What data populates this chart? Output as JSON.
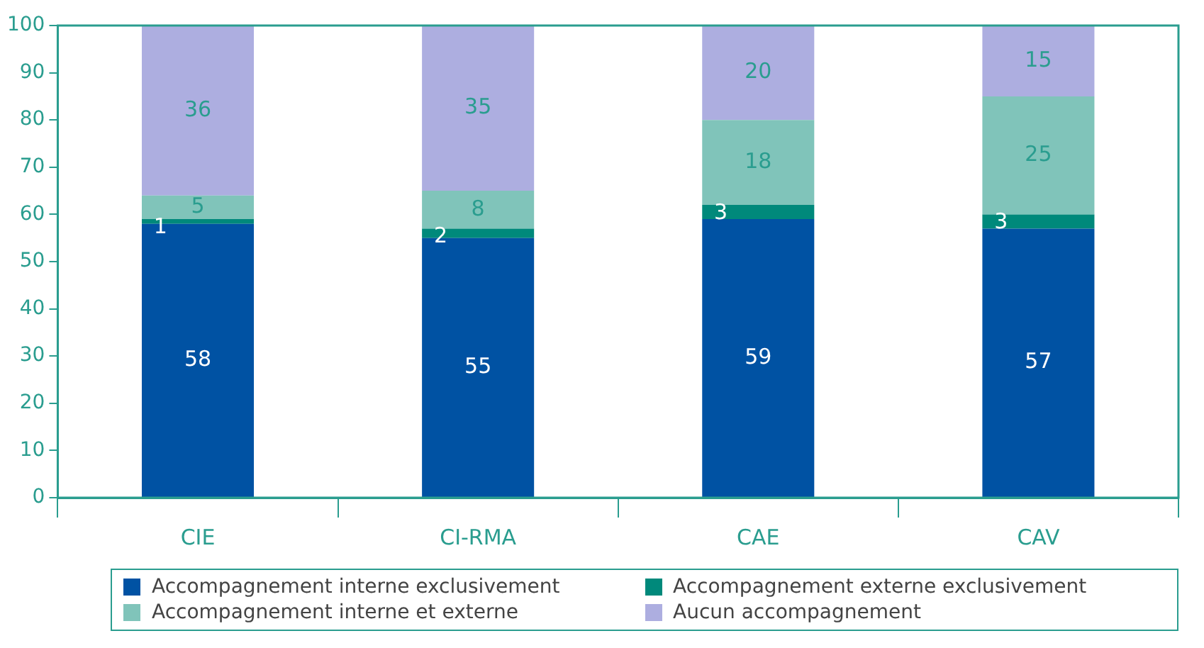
{
  "chart_data": {
    "type": "bar",
    "stacked": true,
    "categories": [
      "CIE",
      "CI-RMA",
      "CAE",
      "CAV"
    ],
    "series": [
      {
        "name": "Accompagnement interne exclusivement",
        "color": "#0052a3",
        "values": [
          58,
          55,
          59,
          57
        ]
      },
      {
        "name": "Accompagnement externe exclusivement",
        "color": "#00897b",
        "values": [
          1,
          2,
          3,
          3
        ]
      },
      {
        "name": "Accompagnement interne et externe",
        "color": "#80c4ba",
        "values": [
          5,
          8,
          18,
          25
        ]
      },
      {
        "name": "Aucun accompagnement",
        "color": "#adaee0",
        "values": [
          36,
          35,
          20,
          15
        ]
      }
    ],
    "ylim": [
      0,
      100
    ],
    "yticks": [
      0,
      10,
      20,
      30,
      40,
      50,
      60,
      70,
      80,
      90,
      100
    ],
    "grid": false,
    "data_labels": true,
    "legend": "bottom"
  }
}
